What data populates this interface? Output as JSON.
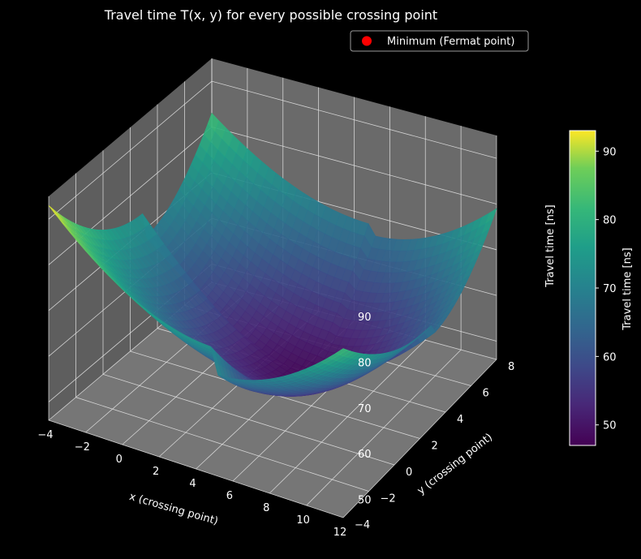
{
  "chart_data": {
    "type": "surface3d",
    "title": "Travel time T(x, y) for every possible crossing point",
    "xlabel": "x (crossing point)",
    "ylabel": "y (crossing point)",
    "zlabel": "Travel time [ns]",
    "colorbar_label": "Travel time [ns]",
    "colormap": "viridis",
    "x_ticks": [
      -4,
      -2,
      0,
      2,
      4,
      6,
      8,
      10,
      12
    ],
    "y_ticks": [
      -4,
      -2,
      0,
      2,
      4,
      6,
      8
    ],
    "z_ticks": [
      50,
      60,
      70,
      80,
      90
    ],
    "colorbar_ticks": [
      50,
      60,
      70,
      80,
      90
    ],
    "xlim": [
      -4,
      12
    ],
    "ylim": [
      -4,
      8
    ],
    "zlim": [
      46,
      95
    ],
    "color_range": [
      47,
      93
    ],
    "surface_corners": [
      {
        "x": -4,
        "y": -4,
        "z": 93
      },
      {
        "x": 12,
        "y": -4,
        "z": 83
      },
      {
        "x": 12,
        "y": 8,
        "z": 79
      },
      {
        "x": -4,
        "y": 8,
        "z": 83
      }
    ],
    "minimum": {
      "x": 5,
      "y": 3,
      "z": 48
    },
    "legend": {
      "label": "Minimum (Fermat point)",
      "marker_color": "#ff0000",
      "position": "top-right"
    },
    "grid": true
  }
}
